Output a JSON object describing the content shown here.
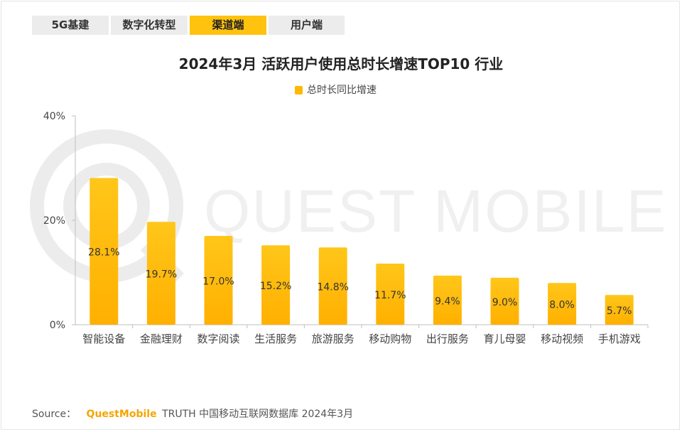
{
  "tabs": [
    {
      "label": "5G基建",
      "active": false
    },
    {
      "label": "数字化转型",
      "active": false
    },
    {
      "label": "渠道端",
      "active": true
    },
    {
      "label": "用户端",
      "active": false
    }
  ],
  "watermark": {
    "text": "QUEST MOBILE"
  },
  "source": {
    "prefix": "Source：",
    "brand": "QuestMobile",
    "text": "TRUTH 中国移动互联网数据库 2024年3月"
  },
  "colors": {
    "bar_top": "#ffc61a",
    "bar_bottom": "#ffb000",
    "accent": "#ffc20e",
    "axis": "#bfbfbf"
  },
  "chart_data": {
    "type": "bar",
    "title": "2024年3月 活跃用户使用总时长增速TOP10 行业",
    "xlabel": "",
    "ylabel": "",
    "ylim": [
      0,
      40
    ],
    "yticks": [
      0,
      20,
      40
    ],
    "ytick_labels": [
      "0%",
      "20%",
      "40%"
    ],
    "grid": false,
    "legend_position": "top-center",
    "categories": [
      "智能设备",
      "金融理财",
      "数字阅读",
      "生活服务",
      "旅游服务",
      "移动购物",
      "出行服务",
      "育儿母婴",
      "移动视频",
      "手机游戏"
    ],
    "series": [
      {
        "name": "总时长同比增速",
        "values": [
          28.1,
          19.7,
          17.0,
          15.2,
          14.8,
          11.7,
          9.4,
          9.0,
          8.0,
          5.7
        ],
        "labels": [
          "28.1%",
          "19.7%",
          "17.0%",
          "15.2%",
          "14.8%",
          "11.7%",
          "9.4%",
          "9.0%",
          "8.0%",
          "5.7%"
        ]
      }
    ]
  }
}
